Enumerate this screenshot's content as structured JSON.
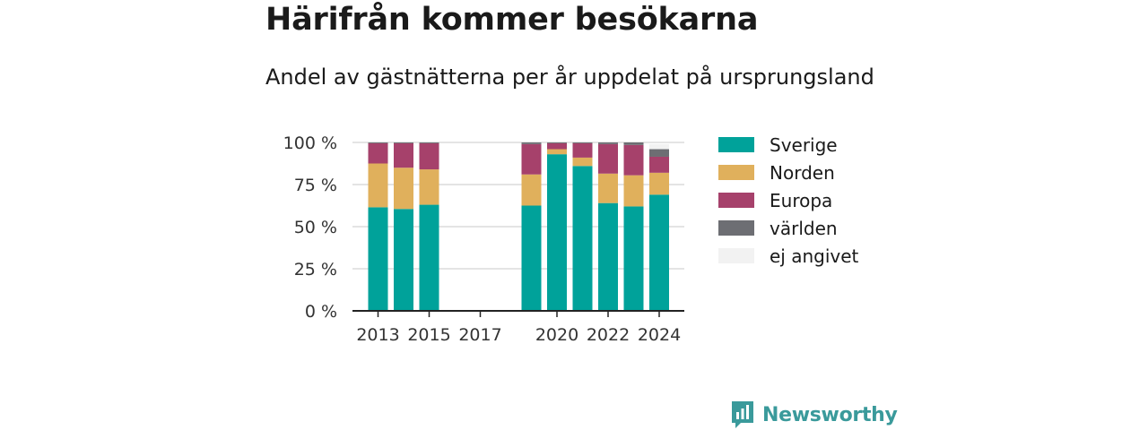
{
  "chart_data": {
    "type": "bar",
    "stacked": true,
    "title": "Härifrån kommer besökarna",
    "subtitle": "Andel av gästnätterna per år uppdelat på ursprungsland",
    "x": [
      2013,
      2014,
      2015,
      2016,
      2017,
      2018,
      2019,
      2020,
      2021,
      2022,
      2023,
      2024
    ],
    "x_tick_labels": [
      "2013",
      "2015",
      "2017",
      "2020",
      "2022",
      "2024"
    ],
    "x_tick_values": [
      2013,
      2015,
      2017,
      2020,
      2022,
      2024
    ],
    "y_tick_labels": [
      "0 %",
      "25 %",
      "50 %",
      "75 %",
      "100 %"
    ],
    "y_tick_values": [
      0,
      25,
      50,
      75,
      100
    ],
    "ylim": [
      0,
      100
    ],
    "grid": true,
    "legend_position": "right",
    "series": [
      {
        "name": "Sverige",
        "color": "#00a29a",
        "values": [
          61.5,
          60.5,
          63,
          null,
          null,
          null,
          62.5,
          93,
          86,
          64,
          62,
          69
        ]
      },
      {
        "name": "Norden",
        "color": "#e0b05c",
        "values": [
          26,
          24.5,
          21,
          null,
          null,
          null,
          18.5,
          3,
          5,
          17.5,
          18.5,
          13
        ]
      },
      {
        "name": "Europa",
        "color": "#a6416b",
        "values": [
          12,
          14.5,
          15.5,
          null,
          null,
          null,
          18,
          3.5,
          8.5,
          17.5,
          18,
          9.5
        ]
      },
      {
        "name": "världen",
        "color": "#6d6e73",
        "values": [
          0.5,
          0.5,
          0.5,
          null,
          null,
          null,
          1,
          0.5,
          0.5,
          1,
          1.5,
          4.5
        ]
      },
      {
        "name": "ej angivet",
        "color": "#f2f2f2",
        "values": [
          0,
          0,
          0,
          null,
          null,
          null,
          0,
          0,
          0,
          0,
          0,
          3
        ]
      }
    ]
  },
  "logo": {
    "text": "Newsworthy",
    "icon": "newsworthy-logo-icon",
    "color": "#3a9a9b"
  }
}
